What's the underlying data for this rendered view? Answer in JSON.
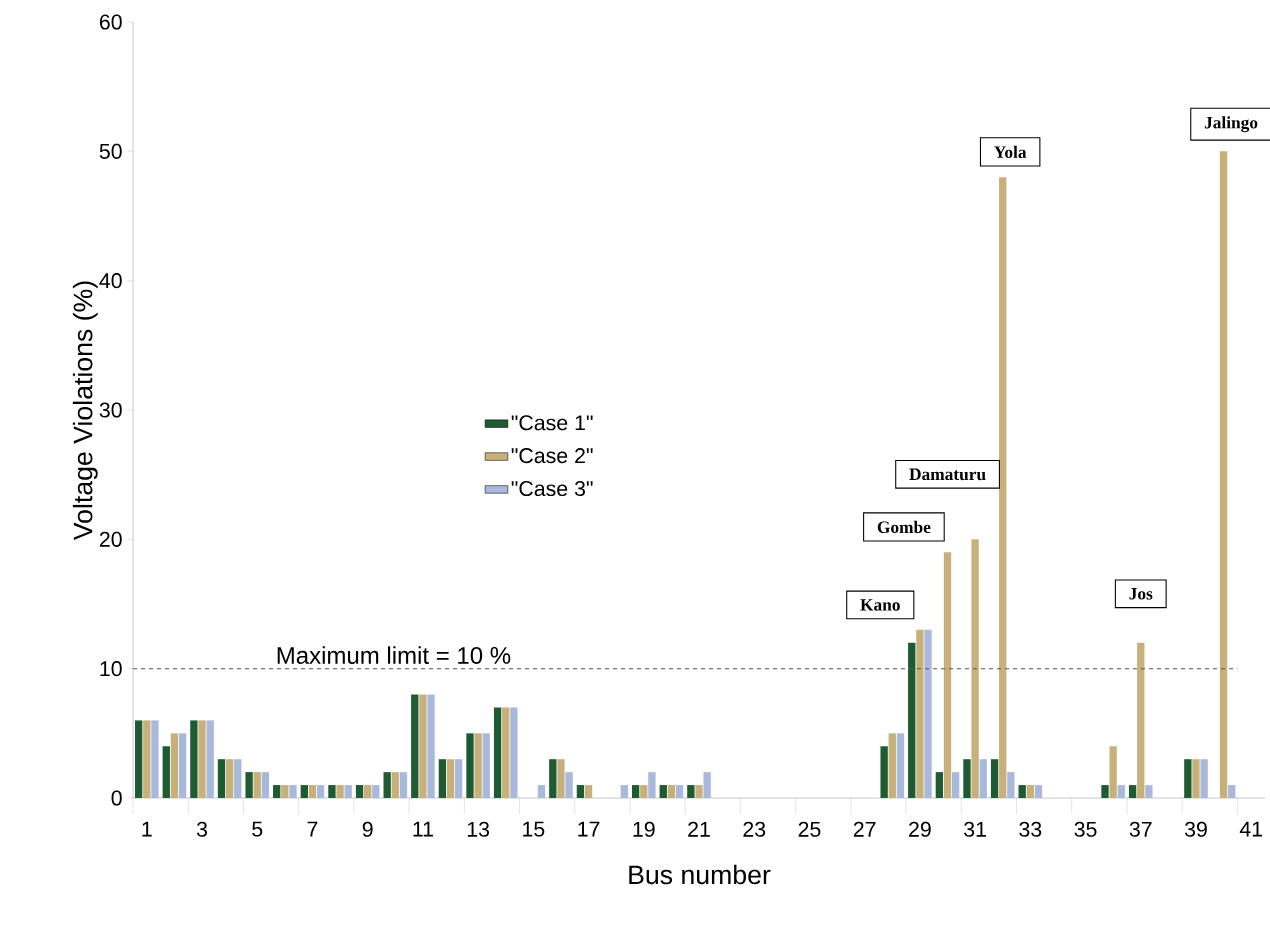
{
  "chart_data": {
    "type": "bar",
    "xlabel": "Bus number",
    "ylabel": "Voltage Violations (%)",
    "categories": [
      "1",
      null,
      "3",
      null,
      "5",
      null,
      "7",
      null,
      "9",
      null,
      "11",
      null,
      "13",
      null,
      "15",
      null,
      "17",
      null,
      "19",
      null,
      "21",
      null,
      "23",
      null,
      "25",
      null,
      "27",
      null,
      "29",
      null,
      "31",
      null,
      "33",
      null,
      "35",
      null,
      "37",
      null,
      "39",
      null,
      "41"
    ],
    "series": [
      {
        "name": "\"Case 1\"",
        "color": "#1e5a32",
        "values": [
          6,
          4,
          6,
          3,
          2,
          1,
          1,
          1,
          1,
          2,
          8,
          3,
          5,
          7,
          null,
          3,
          1,
          null,
          1,
          1,
          1,
          null,
          null,
          null,
          null,
          null,
          null,
          4,
          12,
          2,
          3,
          3,
          1,
          null,
          null,
          1,
          1,
          null,
          3,
          null,
          null
        ]
      },
      {
        "name": "\"Case 2\"",
        "color": "#c8b07a",
        "values": [
          6,
          5,
          6,
          3,
          2,
          1,
          1,
          1,
          1,
          2,
          8,
          3,
          5,
          7,
          null,
          3,
          1,
          null,
          1,
          1,
          1,
          null,
          null,
          null,
          null,
          null,
          null,
          5,
          13,
          19,
          20,
          48,
          1,
          null,
          null,
          4,
          12,
          null,
          3,
          50,
          null
        ]
      },
      {
        "name": "\"Case 3\"",
        "color": "#a9b9dc",
        "values": [
          6,
          5,
          6,
          3,
          2,
          1,
          1,
          1,
          1,
          2,
          8,
          3,
          5,
          7,
          1,
          2,
          null,
          1,
          2,
          1,
          2,
          null,
          null,
          null,
          null,
          null,
          null,
          5,
          13,
          2,
          3,
          2,
          1,
          null,
          null,
          1,
          1,
          null,
          3,
          1,
          null
        ]
      }
    ],
    "ylim": [
      0,
      60
    ],
    "yticks": [
      0,
      10,
      20,
      30,
      40,
      50,
      60
    ],
    "grid": false,
    "legend": "center",
    "ref_lines": [
      {
        "axis": "y",
        "value": 10,
        "label": "Maximum  limit = 10 %",
        "color": "#555555",
        "line_style": "dashed"
      }
    ],
    "annotations": [
      {
        "text": "Kano",
        "x": "29",
        "y": 13
      },
      "Gombe",
      "Damaturu",
      "Yola",
      {
        "text": "Jos",
        "x": "37",
        "y": 12
      },
      "Jalingo"
    ]
  }
}
